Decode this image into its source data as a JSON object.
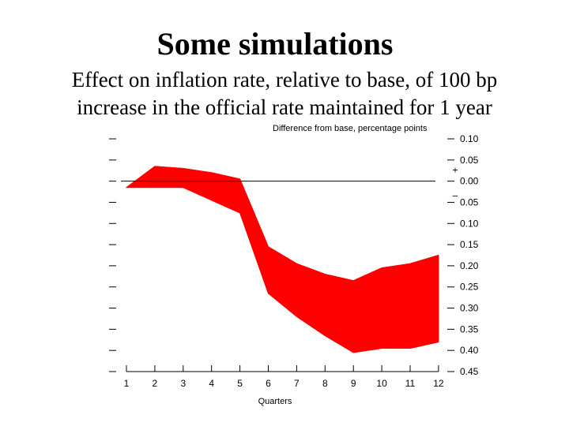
{
  "slide": {
    "title": "Some simulations",
    "subtitle_lines": [
      "Effect on inflation rate, relative to base, of 100 bp",
      "increase in the official rate maintained for 1 year"
    ]
  },
  "chart_data": {
    "type": "area",
    "title": "",
    "ylabel": "Difference from base, percentage points",
    "xlabel": "Quarters",
    "x": [
      1,
      2,
      3,
      4,
      5,
      6,
      7,
      8,
      9,
      10,
      11,
      12
    ],
    "xticks": [
      "1",
      "2",
      "3",
      "4",
      "5",
      "6",
      "7",
      "8",
      "9",
      "10",
      "11",
      "12"
    ],
    "ylim": [
      -0.45,
      0.1
    ],
    "yticks": [
      {
        "value": 0.1,
        "label": "0.10"
      },
      {
        "value": 0.05,
        "label": "0.05"
      },
      {
        "value": 0.0,
        "label": "0.00"
      },
      {
        "value": -0.05,
        "label": "0.05"
      },
      {
        "value": -0.1,
        "label": "0.10"
      },
      {
        "value": -0.15,
        "label": "0.15"
      },
      {
        "value": -0.2,
        "label": "0.20"
      },
      {
        "value": -0.25,
        "label": "0.25"
      },
      {
        "value": -0.3,
        "label": "0.30"
      },
      {
        "value": -0.35,
        "label": "0.35"
      },
      {
        "value": -0.4,
        "label": "0.40"
      },
      {
        "value": -0.45,
        "label": "0.45"
      }
    ],
    "sign_markers": {
      "plus": "+",
      "minus": "–"
    },
    "reference_line": 0,
    "series": [
      {
        "values": [
          -0.015,
          0.035,
          0.03,
          0.02,
          0.005,
          -0.155,
          -0.195,
          -0.22,
          -0.235,
          -0.205,
          -0.195,
          -0.175
        ]
      },
      {
        "values": [
          -0.015,
          -0.015,
          -0.015,
          -0.045,
          -0.075,
          -0.265,
          -0.32,
          -0.365,
          -0.405,
          -0.395,
          -0.395,
          -0.38
        ]
      }
    ],
    "fill_color": "#ff0000",
    "band_color": "#ff0000",
    "grid": false
  }
}
